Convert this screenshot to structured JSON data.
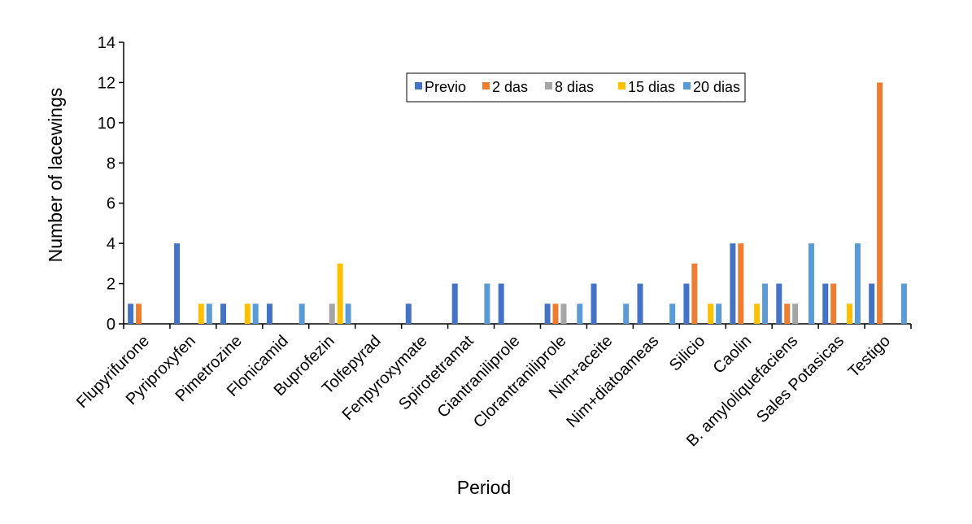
{
  "chart_data": {
    "type": "bar",
    "title": "",
    "xlabel": "Period",
    "ylabel": "Number of lacewings",
    "ylim": [
      0,
      14
    ],
    "yticks": [
      0,
      2,
      4,
      6,
      8,
      10,
      12,
      14
    ],
    "grid": false,
    "legend_position": "top-right",
    "categories": [
      "Flupyrifurone",
      "Pyriproxyfen",
      "Pimetrozine",
      "Flonicamid",
      "Buprofezin",
      "Tolfepyrad",
      "Fenpyroxymate",
      "Spirotetramat",
      "Ciantraniliprole",
      "Clorantraniliprole",
      "Nim+aceite",
      "Nim+diatoameas",
      "Silicio",
      "Caolin",
      "B. amyloliquefaciens",
      "Sales Potasicas",
      "Testigo"
    ],
    "series": [
      {
        "name": "Previo",
        "color": "#4472C4",
        "values": [
          1,
          4,
          1,
          1,
          0,
          0,
          1,
          2,
          2,
          1,
          2,
          2,
          2,
          4,
          2,
          2,
          2
        ]
      },
      {
        "name": "2 das",
        "color": "#ED7D31",
        "values": [
          1,
          0,
          0,
          0,
          0,
          0,
          0,
          0,
          0,
          1,
          0,
          0,
          3,
          4,
          1,
          2,
          12
        ]
      },
      {
        "name": "8 dias",
        "color": "#A5A5A5",
        "values": [
          0,
          0,
          0,
          0,
          1,
          0,
          0,
          0,
          0,
          1,
          0,
          0,
          0,
          0,
          1,
          0,
          0
        ]
      },
      {
        "name": "15 dias",
        "color": "#FFC000",
        "values": [
          0,
          1,
          1,
          0,
          3,
          0,
          0,
          0,
          0,
          0,
          0,
          0,
          1,
          1,
          0,
          1,
          0
        ]
      },
      {
        "name": "20 dias",
        "color": "#5B9BD5",
        "values": [
          0,
          1,
          1,
          1,
          1,
          0,
          0,
          2,
          0,
          1,
          1,
          1,
          1,
          2,
          4,
          4,
          2
        ]
      }
    ]
  }
}
